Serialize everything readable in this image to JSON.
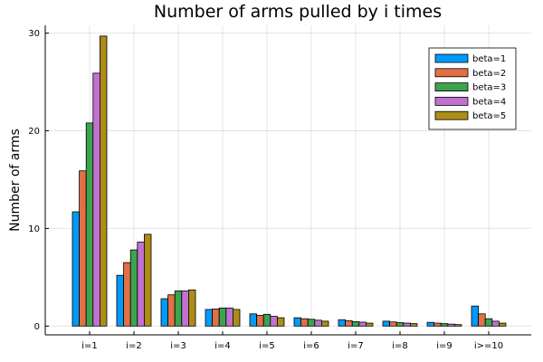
{
  "chart_data": {
    "type": "bar",
    "title": "Number of arms pulled by i times",
    "xlabel": "",
    "ylabel": "Number of arms",
    "categories": [
      "i=1",
      "i=2",
      "i=3",
      "i=4",
      "i=5",
      "i=6",
      "i=7",
      "i=8",
      "i=9",
      "i>=10"
    ],
    "yticks": [
      0,
      10,
      20,
      30
    ],
    "ylim": [
      -0.9,
      30.8
    ],
    "grid": true,
    "legend_position": "top-right",
    "series": [
      {
        "name": "beta=1",
        "color": "#009af9",
        "values": [
          11.7,
          5.2,
          2.8,
          1.7,
          1.25,
          0.85,
          0.65,
          0.5,
          0.38,
          2.05
        ]
      },
      {
        "name": "beta=2",
        "color": "#e26f46",
        "values": [
          15.9,
          6.5,
          3.2,
          1.75,
          1.1,
          0.75,
          0.55,
          0.42,
          0.3,
          1.25
        ]
      },
      {
        "name": "beta=3",
        "color": "#3da44d",
        "values": [
          20.8,
          7.8,
          3.6,
          1.85,
          1.2,
          0.7,
          0.45,
          0.35,
          0.25,
          0.75
        ]
      },
      {
        "name": "beta=4",
        "color": "#c271d2",
        "values": [
          25.9,
          8.6,
          3.6,
          1.85,
          1.0,
          0.6,
          0.4,
          0.3,
          0.2,
          0.5
        ]
      },
      {
        "name": "beta=5",
        "color": "#ac8d18",
        "values": [
          29.7,
          9.4,
          3.7,
          1.7,
          0.85,
          0.5,
          0.3,
          0.25,
          0.15,
          0.3
        ]
      }
    ]
  }
}
